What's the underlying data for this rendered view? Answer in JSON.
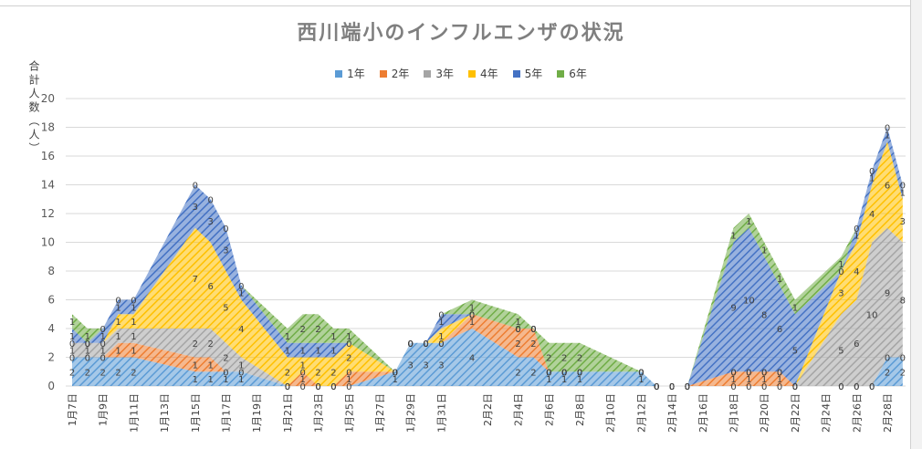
{
  "title": "西川端小のインフルエンザの状況",
  "ylabel": "合計人数︵人︶",
  "colors": {
    "g1": "#5b9bd5",
    "g2": "#ed7d31",
    "g3": "#a5a5a5",
    "g4": "#ffc000",
    "g5": "#4472c4",
    "g6": "#70ad47"
  },
  "chart_data": {
    "type": "area",
    "stacked": true,
    "title": "西川端小のインフルエンザの状況",
    "ylabel": "合計人数︵人︶",
    "ylim": [
      0,
      20
    ],
    "yticks": [
      "0",
      "2",
      "4",
      "6",
      "8",
      "10",
      "12",
      "14",
      "16",
      "18",
      "20"
    ],
    "grid": true,
    "legend_position": "top",
    "x": [
      "1月7日",
      "1月8日",
      "1月9日",
      "1月10日",
      "1月11日",
      "1月15日",
      "1月16日",
      "1月17日",
      "1月18日",
      "1月21日",
      "1月22日",
      "1月23日",
      "1月24日",
      "1月25日",
      "1月28日",
      "1月29日",
      "1月30日",
      "1月31日",
      "2月1日",
      "2月4日",
      "2月5日",
      "2月6日",
      "2月7日",
      "2月8日",
      "2月12日",
      "2月13日",
      "2月14日",
      "2月15日",
      "2月18日",
      "2月19日",
      "2月20日",
      "2月21日",
      "2月22日",
      "2月25日",
      "2月26日",
      "2月27日",
      "2月28日",
      "3月1日"
    ],
    "xticklabels": [
      "1月7日",
      "1月9日",
      "1月11日",
      "1月13日",
      "1月15日",
      "1月17日",
      "1月19日",
      "1月21日",
      "1月23日",
      "1月25日",
      "1月27日",
      "1月29日",
      "1月31日",
      "2月2日",
      "2月4日",
      "2月6日",
      "2月8日",
      "2月10日",
      "2月12日",
      "2月14日",
      "2月16日",
      "2月18日",
      "2月20日",
      "2月22日",
      "2月24日",
      "2月26日",
      "2月28日"
    ],
    "series": [
      {
        "name": "1年",
        "key": "g1",
        "values": [
          2,
          2,
          2,
          2,
          2,
          1,
          1,
          1,
          1,
          0,
          0,
          0,
          0,
          0,
          1,
          3,
          3,
          3,
          4,
          2,
          2,
          1,
          1,
          1,
          1,
          0,
          0,
          0,
          0,
          0,
          0,
          0,
          0,
          0,
          0,
          0,
          2,
          2
        ]
      },
      {
        "name": "2年",
        "key": "g2",
        "values": [
          0,
          0,
          0,
          1,
          1,
          1,
          1,
          0,
          0,
          0,
          1,
          0,
          0,
          1,
          0,
          0,
          0,
          0,
          1,
          2,
          2,
          0,
          0,
          0,
          0,
          0,
          0,
          0,
          1,
          1,
          1,
          1,
          0,
          0,
          0,
          0,
          0,
          0
        ]
      },
      {
        "name": "3年",
        "key": "g3",
        "values": [
          1,
          1,
          1,
          1,
          1,
          2,
          2,
          2,
          1,
          0,
          0,
          0,
          0,
          0,
          0,
          0,
          0,
          0,
          0,
          0,
          0,
          0,
          0,
          0,
          0,
          0,
          0,
          0,
          0,
          0,
          0,
          0,
          0,
          5,
          6,
          10,
          9,
          8
        ]
      },
      {
        "name": "4年",
        "key": "g4",
        "values": [
          0,
          0,
          0,
          1,
          1,
          7,
          6,
          5,
          4,
          2,
          1,
          2,
          2,
          2,
          0,
          0,
          0,
          1,
          0,
          0,
          0,
          0,
          0,
          0,
          0,
          0,
          0,
          0,
          0,
          0,
          0,
          0,
          0,
          3,
          4,
          4,
          6,
          3
        ]
      },
      {
        "name": "5年",
        "key": "g5",
        "values": [
          1,
          0,
          1,
          1,
          1,
          3,
          3,
          3,
          1,
          1,
          1,
          1,
          1,
          0,
          0,
          0,
          0,
          1,
          0,
          0,
          0,
          0,
          0,
          0,
          0,
          0,
          0,
          0,
          9,
          10,
          8,
          6,
          5,
          0,
          1,
          1,
          1,
          1
        ]
      },
      {
        "name": "6年",
        "key": "g6",
        "values": [
          1,
          1,
          0,
          0,
          0,
          0,
          0,
          0,
          0,
          1,
          2,
          2,
          1,
          1,
          0,
          0,
          0,
          0,
          1,
          1,
          0,
          2,
          2,
          2,
          0,
          0,
          0,
          0,
          1,
          1,
          1,
          1,
          1,
          1,
          0,
          0,
          0,
          0
        ]
      }
    ]
  }
}
